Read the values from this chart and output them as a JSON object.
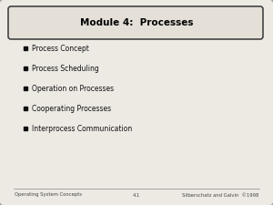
{
  "title": "Module 4:  Processes",
  "bullet_items": [
    "Process Concept",
    "Process Scheduling",
    "Operation on Processes",
    "Cooperating Processes",
    "Interprocess Communication"
  ],
  "footer_left": "Operating System Concepts",
  "footer_center": "4.1",
  "footer_right": "Silberschatz and Galvin  ©1998",
  "bg_color": "#c8c4bc",
  "slide_bg": "#edeae4",
  "title_box_bg": "#e4e0d8",
  "title_box_edge": "#444444",
  "title_color": "#000000",
  "bullet_color": "#111111",
  "footer_color": "#444444",
  "title_fontsize": 7.5,
  "bullet_fontsize": 5.5,
  "footer_fontsize": 3.8
}
